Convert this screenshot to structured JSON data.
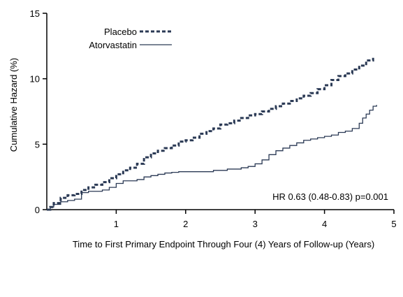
{
  "chart_data": {
    "type": "line",
    "title": "",
    "xlabel": "Time to First Primary Endpoint Through Four (4) Years of Follow-up (Years)",
    "ylabel": "Cumulative Hazard (%)",
    "xlim": [
      0,
      5
    ],
    "ylim": [
      0,
      15
    ],
    "xticks": [
      1,
      2,
      3,
      4,
      5
    ],
    "yticks": [
      0,
      5,
      10,
      15
    ],
    "grid": false,
    "legend_position": "top-center",
    "annotation": "HR 0.63 (0.48-0.83)  p=0.001",
    "series": [
      {
        "name": "Placebo",
        "style": "dashed",
        "color": "#2b3a55",
        "x": [
          0,
          0.05,
          0.1,
          0.2,
          0.3,
          0.4,
          0.5,
          0.6,
          0.7,
          0.8,
          0.9,
          1.0,
          1.1,
          1.2,
          1.3,
          1.4,
          1.5,
          1.6,
          1.7,
          1.8,
          1.9,
          2.0,
          2.1,
          2.2,
          2.3,
          2.4,
          2.5,
          2.6,
          2.7,
          2.8,
          2.9,
          3.0,
          3.1,
          3.2,
          3.3,
          3.4,
          3.5,
          3.6,
          3.7,
          3.8,
          3.9,
          4.0,
          4.1,
          4.2,
          4.3,
          4.4,
          4.5,
          4.6,
          4.7
        ],
        "y": [
          0,
          0.2,
          0.5,
          0.9,
          1.1,
          1.2,
          1.5,
          1.7,
          1.9,
          2.1,
          2.4,
          2.7,
          3.0,
          3.2,
          3.5,
          4.0,
          4.3,
          4.5,
          4.7,
          4.9,
          5.2,
          5.3,
          5.5,
          5.8,
          6.0,
          6.2,
          6.5,
          6.6,
          6.8,
          7.0,
          7.2,
          7.3,
          7.5,
          7.7,
          7.9,
          8.1,
          8.3,
          8.5,
          8.7,
          8.9,
          9.2,
          9.5,
          9.9,
          10.2,
          10.4,
          10.7,
          11.0,
          11.4,
          11.6
        ]
      },
      {
        "name": "Atorvastatin",
        "style": "solid",
        "color": "#2b3a55",
        "x": [
          0,
          0.05,
          0.1,
          0.2,
          0.3,
          0.4,
          0.5,
          0.6,
          0.7,
          0.8,
          0.9,
          1.0,
          1.1,
          1.2,
          1.3,
          1.4,
          1.5,
          1.6,
          1.7,
          1.8,
          1.9,
          2.0,
          2.2,
          2.4,
          2.6,
          2.8,
          2.9,
          3.0,
          3.1,
          3.2,
          3.3,
          3.4,
          3.5,
          3.6,
          3.7,
          3.8,
          3.9,
          4.0,
          4.1,
          4.2,
          4.3,
          4.4,
          4.5,
          4.55,
          4.6,
          4.65,
          4.7,
          4.75
        ],
        "y": [
          0,
          0.2,
          0.4,
          0.6,
          0.7,
          0.8,
          1.3,
          1.4,
          1.4,
          1.5,
          1.7,
          2.0,
          2.2,
          2.2,
          2.3,
          2.5,
          2.6,
          2.7,
          2.8,
          2.85,
          2.9,
          2.9,
          2.9,
          3.0,
          3.1,
          3.2,
          3.3,
          3.5,
          3.8,
          4.2,
          4.5,
          4.7,
          4.9,
          5.1,
          5.3,
          5.4,
          5.5,
          5.6,
          5.7,
          5.9,
          6.0,
          6.2,
          6.6,
          7.0,
          7.3,
          7.6,
          7.9,
          8.0
        ]
      }
    ]
  }
}
